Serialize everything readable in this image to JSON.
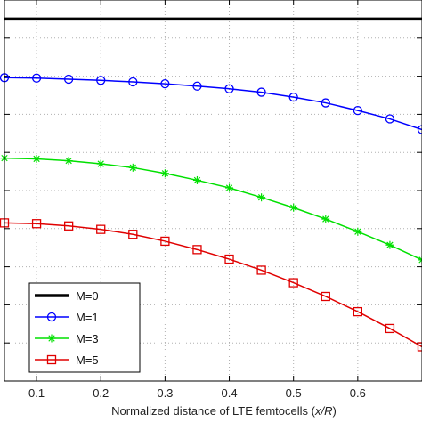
{
  "chart_data": {
    "type": "line",
    "title": "",
    "xlabel": "Normalized distance of LTE femtocells (x/R)",
    "ylabel": "",
    "xlim": [
      0.05,
      0.7
    ],
    "ylim": [
      0,
      1.0
    ],
    "x_ticks": [
      0.1,
      0.2,
      0.3,
      0.4,
      0.5,
      0.6
    ],
    "x_tick_labels": [
      "0.1",
      "0.2",
      "0.3",
      "0.4",
      "0.5",
      "0.6"
    ],
    "y_ticks": [
      0.1,
      0.2,
      0.3,
      0.4,
      0.5,
      0.6,
      0.7,
      0.8,
      0.9
    ],
    "grid": true,
    "legend_position": "bottom-left",
    "x": [
      0.05,
      0.1,
      0.15,
      0.2,
      0.25,
      0.3,
      0.35,
      0.4,
      0.45,
      0.5,
      0.55,
      0.6,
      0.65,
      0.7
    ],
    "series": [
      {
        "name": "M=0",
        "color": "#000000",
        "marker": "none",
        "values": [
          0.95,
          0.95,
          0.95,
          0.95,
          0.95,
          0.95,
          0.95,
          0.95,
          0.95,
          0.95,
          0.95,
          0.95,
          0.95,
          0.95
        ]
      },
      {
        "name": "M=1",
        "color": "#0000ff",
        "marker": "circle",
        "values": [
          0.796,
          0.795,
          0.792,
          0.789,
          0.785,
          0.78,
          0.774,
          0.767,
          0.758,
          0.745,
          0.73,
          0.71,
          0.688,
          0.66
        ]
      },
      {
        "name": "M=3",
        "color": "#00e000",
        "marker": "asterisk",
        "values": [
          0.585,
          0.583,
          0.578,
          0.57,
          0.56,
          0.545,
          0.527,
          0.507,
          0.482,
          0.455,
          0.425,
          0.392,
          0.357,
          0.318
        ]
      },
      {
        "name": "M=5",
        "color": "#e00000",
        "marker": "square",
        "values": [
          0.415,
          0.413,
          0.407,
          0.398,
          0.385,
          0.367,
          0.345,
          0.32,
          0.291,
          0.258,
          0.222,
          0.182,
          0.138,
          0.09
        ]
      }
    ]
  }
}
